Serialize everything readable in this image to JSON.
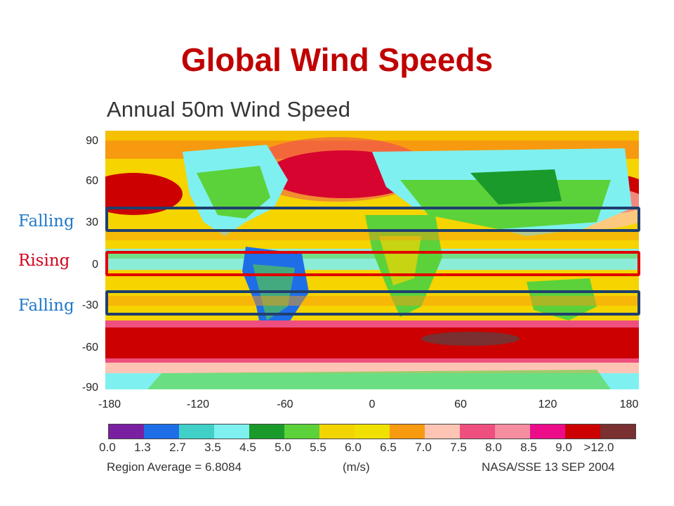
{
  "slide": {
    "title": "Global Wind Speeds"
  },
  "map": {
    "title": "Annual 50m Wind Speed",
    "y_ticks": [
      "90",
      "60",
      "30",
      "0",
      "-30",
      "-60",
      "-90"
    ],
    "x_ticks": [
      "-180",
      "-120",
      "-60",
      "0",
      "60",
      "120",
      "180"
    ]
  },
  "bands": [
    {
      "label": "Falling",
      "label_color": "#1f78c8",
      "box_color": "#1f3f6e"
    },
    {
      "label": "Rising",
      "label_color": "#d0021b",
      "box_color": "#e00000"
    },
    {
      "label": "Falling",
      "label_color": "#1f78c8",
      "box_color": "#1f3f6e"
    }
  ],
  "legend": {
    "colors": [
      "#7b1fa2",
      "#1e6ee8",
      "#40d0c8",
      "#7ff0f0",
      "#1a9a2a",
      "#5bd23a",
      "#f2d500",
      "#f0e000",
      "#f79a10",
      "#ffc4b4",
      "#ee4f7f",
      "#f58ca0",
      "#ec0c8a",
      "#cc0000",
      "#7a2f30"
    ],
    "ticks": [
      "0.0",
      "1.3",
      "2.7",
      "3.5",
      "4.5",
      "5.0",
      "5.5",
      "6.0",
      "6.5",
      "7.0",
      "7.5",
      "8.0",
      "8.5",
      "9.0",
      ">12.0"
    ],
    "region_average": "Region Average = 6.8084",
    "unit": "(m/s)",
    "source": "NASA/SSE 13 SEP 2004"
  }
}
